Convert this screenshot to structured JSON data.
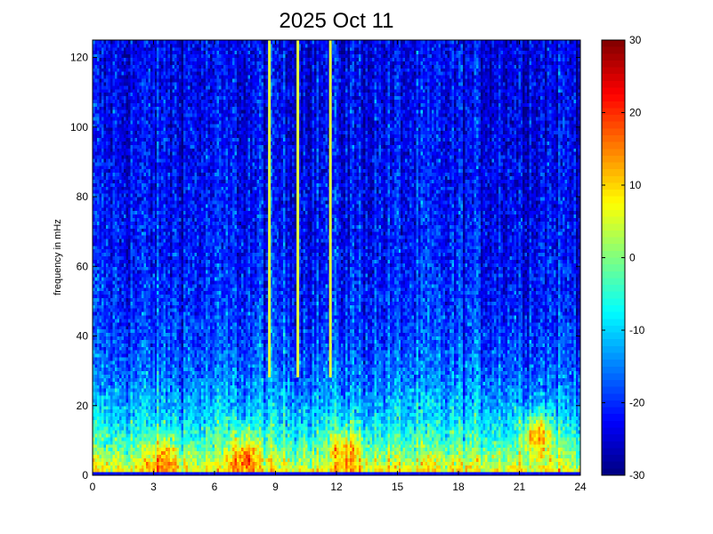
{
  "chart_data": {
    "type": "heatmap",
    "title": "2025 Oct 11",
    "xlabel": "",
    "ylabel": "frequency in mHz",
    "x_unit": "hour",
    "xlim": [
      0,
      24
    ],
    "ylim": [
      0,
      125
    ],
    "x_ticks": [
      "0",
      "3",
      "6",
      "9",
      "12",
      "15",
      "18",
      "21",
      "24"
    ],
    "y_ticks": [
      "0",
      "20",
      "40",
      "60",
      "80",
      "100",
      "120"
    ],
    "colorbar": {
      "range": [
        -30,
        30
      ],
      "ticks": [
        "-30",
        "-20",
        "-10",
        "0",
        "10",
        "20",
        "30"
      ],
      "colormap": "jet"
    },
    "color_scale": [
      "#00008f",
      "#0000ff",
      "#00ffff",
      "#ffff00",
      "#ff0000",
      "#800000"
    ],
    "vertical_lines_hours": [
      8.7,
      10.1,
      11.7
    ],
    "vertical_line_color": "#e6ff3a",
    "low_frequency_band_mhz": 1.5,
    "low_frequency_band_value": -22,
    "hotspots": [
      {
        "hour": 7.5,
        "frequency_mhz": 6,
        "value": 22
      },
      {
        "hour": 12.5,
        "frequency_mhz": 8,
        "value": 20
      },
      {
        "hour": 21.9,
        "frequency_mhz": 12,
        "value": 25
      },
      {
        "hour": 3.5,
        "frequency_mhz": 5,
        "value": 18
      }
    ]
  }
}
